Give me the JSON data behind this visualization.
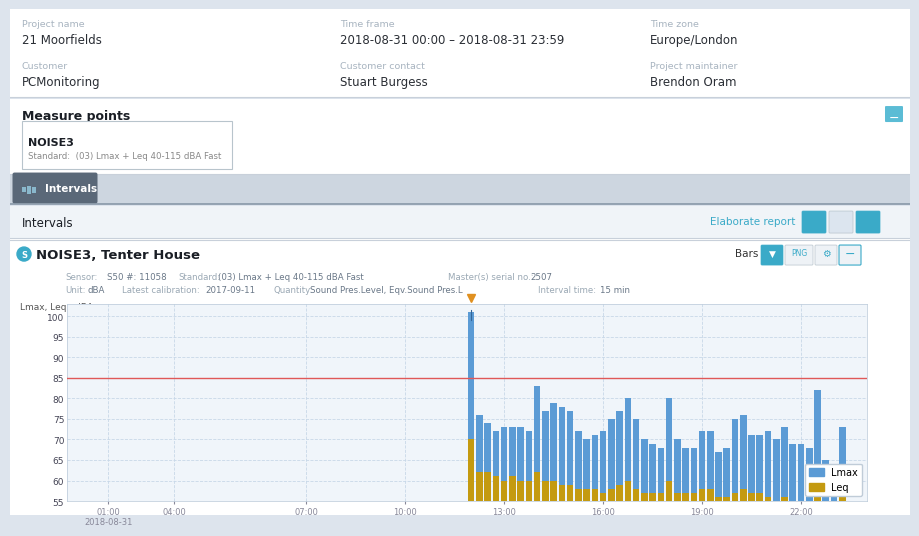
{
  "project_name_label": "Project name",
  "project_name": "21 Moorfields",
  "time_frame_label": "Time frame",
  "time_frame": "2018-08-31 00:00 – 2018-08-31 23:59",
  "time_zone_label": "Time zone",
  "time_zone": "Europe/London",
  "customer_label": "Customer",
  "customer": "PCMonitoring",
  "customer_contact_label": "Customer contact",
  "customer_contact": "Stuart Burgess",
  "project_maintainer_label": "Project maintainer",
  "project_maintainer": "Brendon Oram",
  "measure_points_title": "Measure points",
  "noise3_title": "NOISE3",
  "noise3_standard": "Standard:  (03) Lmax + Leq 40-115 dBA Fast",
  "intervals_tab": "Intervals",
  "intervals_label": "Intervals",
  "elaborate_report": "Elaborate report",
  "chart_title": "NOISE3, Tenter House",
  "ylabel": "Lmax, Leq : dBA",
  "ref_line": 85,
  "ylim_min": 55,
  "ylim_max": 103,
  "yticks": [
    55,
    60,
    65,
    70,
    75,
    80,
    85,
    90,
    95,
    100
  ],
  "bar_color_lmax": "#5b9bd5",
  "bar_color_leq": "#c49a10",
  "bg_chart": "#f0f5fa",
  "grid_color": "#c8d8e8",
  "ref_line_color": "#e05858",
  "lmax_values": [
    0,
    0,
    0,
    0,
    0,
    0,
    0,
    0,
    0,
    0,
    0,
    0,
    0,
    0,
    0,
    0,
    0,
    0,
    0,
    0,
    0,
    0,
    0,
    0,
    0,
    0,
    0,
    0,
    0,
    0,
    0,
    0,
    0,
    0,
    0,
    0,
    0,
    0,
    0,
    0,
    0,
    0,
    0,
    0,
    0,
    0,
    0,
    0,
    101,
    76,
    74,
    72,
    73,
    73,
    73,
    72,
    83,
    77,
    79,
    78,
    77,
    72,
    70,
    71,
    72,
    75,
    77,
    80,
    75,
    70,
    69,
    68,
    80,
    70,
    68,
    68,
    72,
    72,
    67,
    68,
    75,
    76,
    71,
    71,
    72,
    70,
    73,
    69,
    69,
    68,
    82,
    65,
    62,
    73,
    0,
    0
  ],
  "leq_values": [
    0,
    0,
    0,
    0,
    0,
    0,
    0,
    0,
    0,
    0,
    0,
    0,
    0,
    0,
    0,
    0,
    0,
    0,
    0,
    0,
    0,
    0,
    0,
    0,
    0,
    0,
    0,
    0,
    0,
    0,
    0,
    0,
    0,
    0,
    0,
    0,
    0,
    0,
    0,
    0,
    0,
    0,
    0,
    0,
    0,
    0,
    0,
    0,
    70,
    62,
    62,
    61,
    60,
    61,
    60,
    60,
    62,
    60,
    60,
    59,
    59,
    58,
    58,
    58,
    57,
    58,
    59,
    60,
    58,
    57,
    57,
    57,
    60,
    57,
    57,
    57,
    58,
    58,
    56,
    56,
    57,
    58,
    57,
    57,
    56,
    55,
    56,
    55,
    55,
    55,
    62,
    54,
    55,
    56,
    0,
    0
  ],
  "n_bars": 96,
  "spike_bar": 48,
  "spike_lmax": 101,
  "xtick_pos": [
    4,
    12,
    28,
    40,
    52,
    64,
    76,
    88
  ],
  "xtick_labels": [
    "01:00\n2018-08-31",
    "04:00",
    "07:00",
    "10:00",
    "13:00",
    "16:00",
    "19:00",
    "22:00"
  ]
}
